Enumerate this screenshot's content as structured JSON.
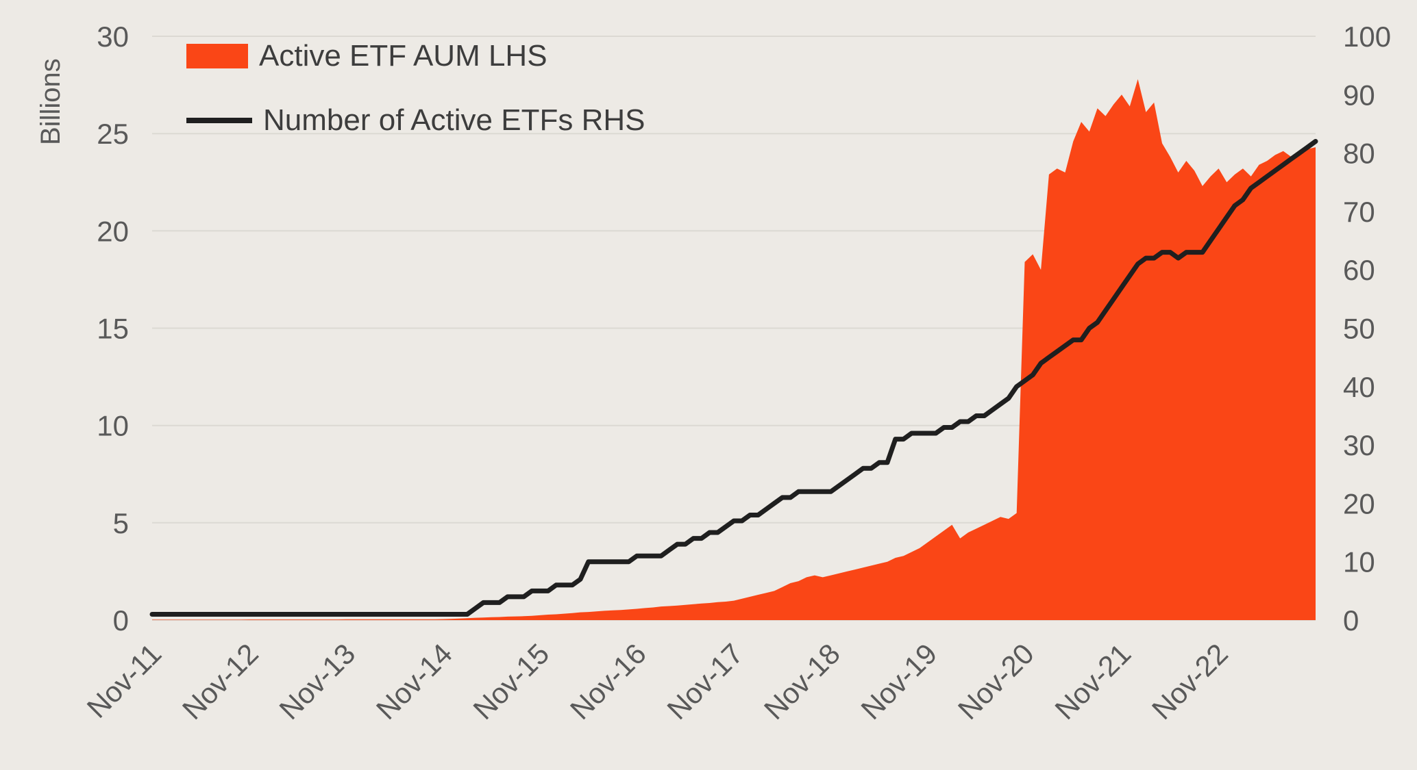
{
  "chart_data": {
    "type": "area",
    "title": "",
    "left_axis": {
      "title": "Billions",
      "min": 0,
      "max": 30,
      "ticks": [
        0,
        5,
        10,
        15,
        20,
        25,
        30
      ]
    },
    "right_axis": {
      "min": 0,
      "max": 100,
      "ticks": [
        0,
        10,
        20,
        30,
        40,
        50,
        60,
        70,
        80,
        90,
        100
      ]
    },
    "x": {
      "unit": "month",
      "start": "Nov-11",
      "end": "Nov-23",
      "tick_indices": [
        0,
        12,
        24,
        36,
        48,
        60,
        72,
        84,
        96,
        108,
        120,
        132
      ],
      "tick_labels": [
        "Nov-11",
        "Nov-12",
        "Nov-13",
        "Nov-14",
        "Nov-15",
        "Nov-16",
        "Nov-17",
        "Nov-18",
        "Nov-19",
        "Nov-20",
        "Nov-21",
        "Nov-22"
      ]
    },
    "grid": true,
    "grid_color": "#dcd9d3",
    "background_color": "#edeae5",
    "legend_position": "top-left",
    "series": [
      {
        "name": "Active ETF AUM LHS",
        "type": "area",
        "axis": "left",
        "color": "#fa4616",
        "values": [
          0.02,
          0.02,
          0.02,
          0.02,
          0.02,
          0.02,
          0.02,
          0.02,
          0.02,
          0.02,
          0.02,
          0.02,
          0.03,
          0.03,
          0.03,
          0.03,
          0.03,
          0.03,
          0.03,
          0.03,
          0.03,
          0.03,
          0.03,
          0.03,
          0.04,
          0.04,
          0.04,
          0.04,
          0.04,
          0.04,
          0.04,
          0.04,
          0.04,
          0.04,
          0.04,
          0.04,
          0.05,
          0.06,
          0.08,
          0.1,
          0.12,
          0.13,
          0.15,
          0.16,
          0.18,
          0.19,
          0.2,
          0.22,
          0.25,
          0.28,
          0.3,
          0.33,
          0.36,
          0.4,
          0.42,
          0.45,
          0.48,
          0.5,
          0.52,
          0.55,
          0.58,
          0.62,
          0.65,
          0.7,
          0.72,
          0.75,
          0.78,
          0.82,
          0.85,
          0.88,
          0.92,
          0.95,
          1.0,
          1.1,
          1.2,
          1.3,
          1.4,
          1.5,
          1.7,
          1.9,
          2.0,
          2.2,
          2.3,
          2.2,
          2.3,
          2.4,
          2.5,
          2.6,
          2.7,
          2.8,
          2.9,
          3.0,
          3.2,
          3.3,
          3.5,
          3.7,
          4.0,
          4.3,
          4.6,
          4.9,
          4.2,
          4.5,
          4.7,
          4.9,
          5.1,
          5.3,
          5.2,
          5.5,
          18.4,
          18.8,
          18.0,
          22.9,
          23.2,
          23.0,
          24.6,
          25.6,
          25.1,
          26.3,
          25.9,
          26.5,
          27.0,
          26.4,
          27.8,
          26.1,
          26.6,
          24.5,
          23.8,
          23.0,
          23.6,
          23.1,
          22.3,
          22.8,
          23.2,
          22.5,
          22.9,
          23.2,
          22.8,
          23.4,
          23.6,
          23.9,
          24.1,
          23.8,
          24.0,
          24.2,
          24.3
        ]
      },
      {
        "name": "Number of Active ETFs RHS",
        "type": "line",
        "axis": "right",
        "color": "#1f1f1f",
        "values": [
          1,
          1,
          1,
          1,
          1,
          1,
          1,
          1,
          1,
          1,
          1,
          1,
          1,
          1,
          1,
          1,
          1,
          1,
          1,
          1,
          1,
          1,
          1,
          1,
          1,
          1,
          1,
          1,
          1,
          1,
          1,
          1,
          1,
          1,
          1,
          1,
          1,
          1,
          1,
          1,
          2,
          3,
          3,
          3,
          4,
          4,
          4,
          5,
          5,
          5,
          6,
          6,
          6,
          7,
          10,
          10,
          10,
          10,
          10,
          10,
          11,
          11,
          11,
          11,
          12,
          13,
          13,
          14,
          14,
          15,
          15,
          16,
          17,
          17,
          18,
          18,
          19,
          20,
          21,
          21,
          22,
          22,
          22,
          22,
          22,
          23,
          24,
          25,
          26,
          26,
          27,
          27,
          31,
          31,
          32,
          32,
          32,
          32,
          33,
          33,
          34,
          34,
          35,
          35,
          36,
          37,
          38,
          40,
          41,
          42,
          44,
          45,
          46,
          47,
          48,
          48,
          50,
          51,
          53,
          55,
          57,
          59,
          61,
          62,
          62,
          63,
          63,
          62,
          63,
          63,
          63,
          65,
          67,
          69,
          71,
          72,
          74,
          75,
          76,
          77,
          78,
          79,
          80,
          81,
          82
        ]
      }
    ]
  }
}
